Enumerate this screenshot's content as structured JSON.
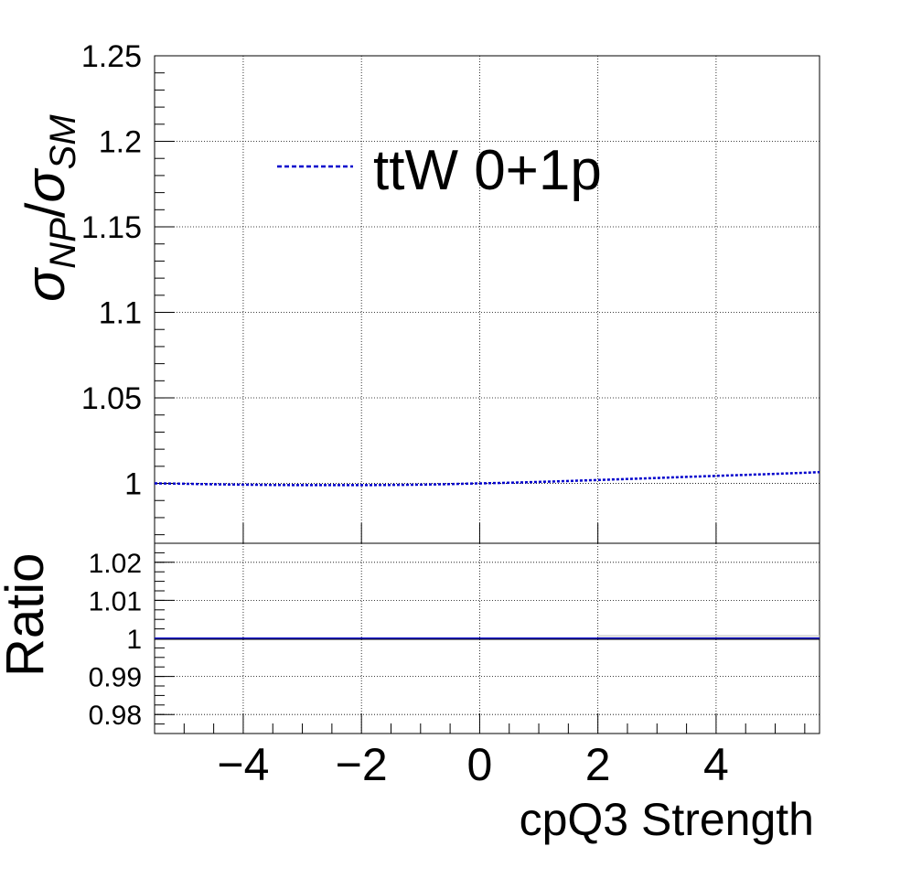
{
  "chart_data": [
    {
      "panel": "main",
      "type": "line",
      "ylabel_main": "σ",
      "ylabel_sub_num": "NP",
      "ylabel_slash": "/",
      "ylabel_sub_den": "SM",
      "xlim": [
        -5.5,
        5.75
      ],
      "ylim": [
        0.965,
        1.25
      ],
      "yticks": [
        1,
        1.05,
        1.1,
        1.15,
        1.2,
        1.25
      ],
      "ytick_labels": [
        "1",
        "1.05",
        "1.1",
        "1.15",
        "1.2",
        "1.25"
      ],
      "grid": true,
      "legend_position": "top",
      "series": [
        {
          "name": "ttW 0+1p",
          "color": "#0000cc",
          "line_style": "dashed",
          "x": [
            -5.5,
            -5,
            -4.5,
            -4,
            -3.5,
            -3,
            -2.5,
            -2,
            -1.5,
            -1,
            -0.5,
            0,
            0.5,
            1,
            1.5,
            2,
            2.5,
            3,
            3.5,
            4,
            4.5,
            5,
            5.5,
            5.75
          ],
          "y": [
            1.0,
            0.9998,
            0.9995,
            0.9993,
            0.9991,
            0.999,
            0.999,
            0.999,
            0.9991,
            0.9993,
            0.9996,
            1.0,
            1.0004,
            1.0009,
            1.0014,
            1.002,
            1.0026,
            1.0032,
            1.0038,
            1.0044,
            1.005,
            1.0056,
            1.0062,
            1.0066
          ]
        }
      ]
    },
    {
      "panel": "ratio",
      "type": "line",
      "ylabel": "Ratio",
      "xlabel": "cpQ3 Strength",
      "xlim": [
        -5.5,
        5.75
      ],
      "ylim": [
        0.975,
        1.025
      ],
      "xticks": [
        -4,
        -2,
        0,
        2,
        4
      ],
      "xtick_labels": [
        "−4",
        "−2",
        "0",
        "2",
        "4"
      ],
      "yticks": [
        0.98,
        0.99,
        1,
        1.01,
        1.02
      ],
      "ytick_labels": [
        "0.98",
        "0.99",
        "1",
        "1.01",
        "1.02"
      ],
      "grid": true,
      "series": [
        {
          "color": "#0000cc",
          "x": [
            -5.5,
            5.75
          ],
          "y": [
            1.0,
            1.0
          ]
        }
      ]
    }
  ]
}
